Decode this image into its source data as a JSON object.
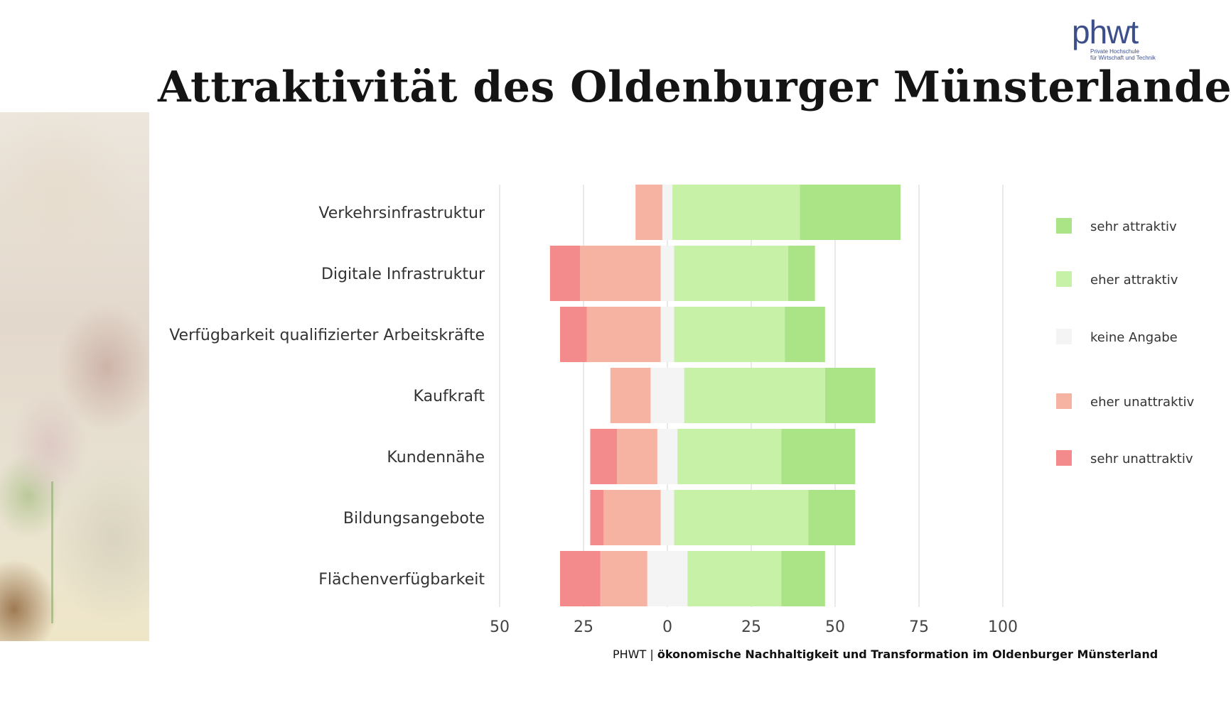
{
  "title": "Attraktivität des Oldenburger Münsterlandes",
  "logo": {
    "word": "phwt",
    "line1": "Private Hochschule",
    "line2": "für Wirtschaft und Technik"
  },
  "source": {
    "prefix": "PHWT |",
    "text": "ökonomische Nachhaltigkeit und Transformation im Oldenburger Münsterland"
  },
  "chart_data": {
    "type": "bar",
    "orientation": "horizontal-diverging",
    "categories": [
      "Verkehrsinfrastruktur",
      "Digitale Infrastruktur",
      "Verfügbarkeit qualifizierter Arbeitskräfte",
      "Kaufkraft",
      "Kundennähe",
      "Bildungsangebote",
      "Flächenverfügbarkeit"
    ],
    "series": [
      {
        "name": "sehr attraktiv",
        "color": "#abe387",
        "values": [
          30,
          8,
          12,
          15,
          22,
          14,
          13
        ]
      },
      {
        "name": "eher attraktiv",
        "color": "#c8f1a8",
        "values": [
          38,
          34,
          33,
          42,
          31,
          40,
          28
        ]
      },
      {
        "name": "keine Angabe",
        "color": "#f4f4f4",
        "values": [
          3,
          4,
          4,
          10,
          6,
          4,
          12
        ]
      },
      {
        "name": "eher unattraktiv",
        "color": "#f6b3a1",
        "values": [
          8,
          24,
          22,
          12,
          12,
          17,
          14
        ]
      },
      {
        "name": "sehr unattraktiv",
        "color": "#f38a8c",
        "values": [
          0,
          9,
          8,
          0,
          8,
          4,
          12
        ]
      }
    ],
    "xticks": [
      "50",
      "25",
      "0",
      "25",
      "50",
      "75",
      "100"
    ],
    "xlim": [
      -50,
      100
    ],
    "legend_position": "right",
    "grid": true
  }
}
